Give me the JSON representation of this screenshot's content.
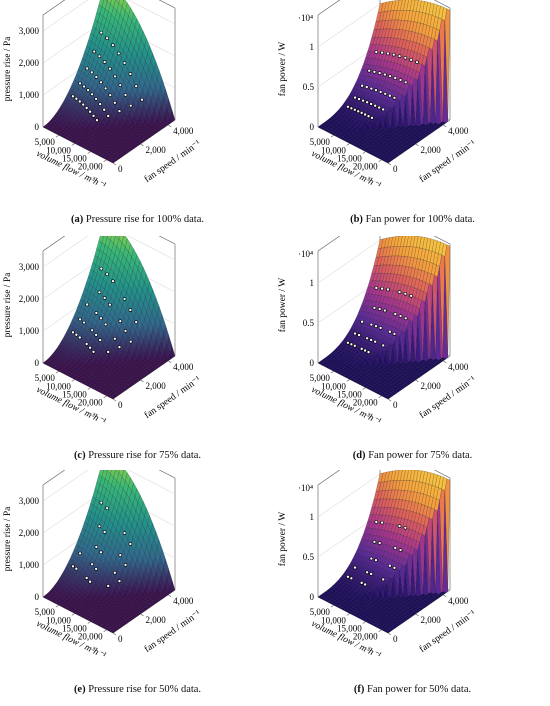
{
  "figure": {
    "colors": {
      "pressure_colormap": [
        "#3b0f4f",
        "#31688e",
        "#21918c",
        "#35b779",
        "#a8db34"
      ],
      "power_colormap": [
        "#1b0c5e",
        "#5b2a9a",
        "#a8358e",
        "#e0605a",
        "#f7a23b",
        "#f6c341"
      ],
      "axis": "#555555",
      "measurement_points": "#ffffff"
    }
  },
  "chart_data": [
    {
      "type": "surface3d",
      "id": "a",
      "caption_label": "(a)",
      "caption_text": " Pressure rise for 100% data.",
      "xlabel": "volume flow / m³h⁻¹",
      "ylabel": "fan speed / min⁻¹",
      "zlabel": "pressure rise / Pa",
      "x_ticks": [
        "5,000",
        "10,000",
        "15,000",
        "20,000"
      ],
      "y_ticks": [
        "0",
        "2,000",
        "4,000"
      ],
      "z_ticks": [
        "0",
        "1,000",
        "2,000",
        "3,000"
      ],
      "z_exponent": "",
      "xlim": [
        0,
        22000
      ],
      "ylim": [
        0,
        4500
      ],
      "zlim": [
        0,
        3500
      ],
      "colormap": "pressure",
      "measured_fraction": 1.0
    },
    {
      "type": "surface3d",
      "id": "b",
      "caption_label": "(b)",
      "caption_text": " Fan power for 100% data.",
      "xlabel": "volume flow / m³h⁻¹",
      "ylabel": "fan speed / min⁻¹",
      "zlabel": "fan power / W",
      "x_ticks": [
        "5,000",
        "10,000",
        "15,000",
        "20,000"
      ],
      "y_ticks": [
        "0",
        "2,000",
        "4,000"
      ],
      "z_ticks": [
        "0",
        "0.5",
        "1"
      ],
      "z_exponent": "·10⁴",
      "xlim": [
        0,
        22000
      ],
      "ylim": [
        0,
        4500
      ],
      "zlim": [
        0,
        14000
      ],
      "colormap": "power",
      "measured_fraction": 1.0
    },
    {
      "type": "surface3d",
      "id": "c",
      "caption_label": "(c)",
      "caption_text": " Pressure rise for 75% data.",
      "xlabel": "volume flow / m³h⁻¹",
      "ylabel": "fan speed / min⁻¹",
      "zlabel": "pressure rise / Pa",
      "x_ticks": [
        "5,000",
        "10,000",
        "15,000",
        "20,000"
      ],
      "y_ticks": [
        "0",
        "2,000",
        "4,000"
      ],
      "z_ticks": [
        "0",
        "1,000",
        "2,000",
        "3,000"
      ],
      "z_exponent": "",
      "xlim": [
        0,
        22000
      ],
      "ylim": [
        0,
        4500
      ],
      "zlim": [
        0,
        3500
      ],
      "colormap": "pressure",
      "measured_fraction": 0.75
    },
    {
      "type": "surface3d",
      "id": "d",
      "caption_label": "(d)",
      "caption_text": " Fan power for 75% data.",
      "xlabel": "volume flow / m³h⁻¹",
      "ylabel": "fan speed / min⁻¹",
      "zlabel": "fan power / W",
      "x_ticks": [
        "5,000",
        "10,000",
        "15,000",
        "20,000"
      ],
      "y_ticks": [
        "0",
        "2,000",
        "4,000"
      ],
      "z_ticks": [
        "0",
        "0.5",
        "1"
      ],
      "z_exponent": "·10⁴",
      "xlim": [
        0,
        22000
      ],
      "ylim": [
        0,
        4500
      ],
      "zlim": [
        0,
        14000
      ],
      "colormap": "power",
      "measured_fraction": 0.75
    },
    {
      "type": "surface3d",
      "id": "e",
      "caption_label": "(e)",
      "caption_text": " Pressure rise for 50% data.",
      "xlabel": "volume flow / m³h⁻¹",
      "ylabel": "fan speed / min⁻¹",
      "zlabel": "pressure rise / Pa",
      "x_ticks": [
        "5,000",
        "10,000",
        "15,000",
        "20,000"
      ],
      "y_ticks": [
        "0",
        "2,000",
        "4,000"
      ],
      "z_ticks": [
        "0",
        "1,000",
        "2,000",
        "3,000"
      ],
      "z_exponent": "",
      "xlim": [
        0,
        22000
      ],
      "ylim": [
        0,
        4500
      ],
      "zlim": [
        0,
        3500
      ],
      "colormap": "pressure",
      "measured_fraction": 0.5
    },
    {
      "type": "surface3d",
      "id": "f",
      "caption_label": "(f)",
      "caption_text": " Fan power for 50% data.",
      "xlabel": "volume flow / m³h⁻¹",
      "ylabel": "fan speed / min⁻¹",
      "zlabel": "fan power / W",
      "x_ticks": [
        "5,000",
        "10,000",
        "15,000",
        "20,000"
      ],
      "y_ticks": [
        "0",
        "2,000",
        "4,000"
      ],
      "z_ticks": [
        "0",
        "0.5",
        "1"
      ],
      "z_exponent": "·10⁴",
      "xlim": [
        0,
        22000
      ],
      "ylim": [
        0,
        4500
      ],
      "zlim": [
        0,
        14000
      ],
      "colormap": "power",
      "measured_fraction": 0.5
    }
  ]
}
